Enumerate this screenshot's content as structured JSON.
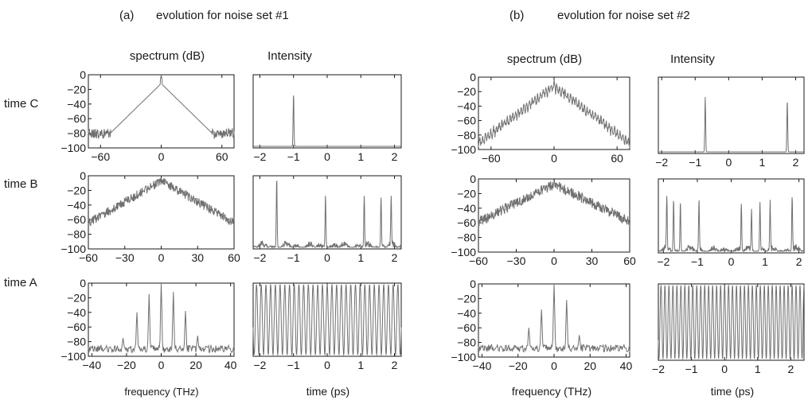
{
  "panels": [
    {
      "label": "(a)",
      "title": "evolution for noise set #1"
    },
    {
      "label": "(b)",
      "title": "evolution for noise set #2"
    }
  ],
  "column_headers": {
    "spectrum": "spectrum (dB)",
    "intensity": "Intensity"
  },
  "row_labels": {
    "C": "time C",
    "B": "time B",
    "A": "time A"
  },
  "x_labels": {
    "spectrum": "frequency (THz)",
    "intensity": "time (ps)"
  },
  "colors": {
    "trace": "#707070",
    "axis": "#1a1a1a"
  },
  "chart_data": [
    {
      "id": "a-C-spectrum",
      "panel": "(a)",
      "row": "time C",
      "type": "line",
      "ylabel": "spectrum (dB)",
      "xlim": [
        -72,
        72
      ],
      "ylim": [
        -100,
        0
      ],
      "xticks": [
        -60,
        0,
        60
      ],
      "yticks": [
        0,
        -20,
        -40,
        -60,
        -80,
        -100
      ],
      "shape": "triangular spectrum, peak ~-12 dB at 0 THz with spike to 0 dB, noise floor ~-80 dB beyond ±50 THz"
    },
    {
      "id": "a-C-intensity",
      "panel": "(a)",
      "row": "time C",
      "type": "line",
      "ylabel": "Intensity",
      "xlim": [
        -2.2,
        2.2
      ],
      "xticks": [
        -2,
        -1,
        0,
        1,
        2
      ],
      "peaks_t": [
        -1.0
      ]
    },
    {
      "id": "a-B-spectrum",
      "panel": "(a)",
      "row": "time B",
      "type": "line",
      "ylabel": "spectrum (dB)",
      "xlim": [
        -60,
        60
      ],
      "ylim": [
        -100,
        0
      ],
      "xticks": [
        -60,
        -30,
        0,
        30,
        60
      ],
      "yticks": [
        0,
        -20,
        -40,
        -60,
        -80,
        -100
      ],
      "shape": "noisy triangular spectrum, peak ~-5 dB at 0 THz, ~-62 dB at ±60 THz"
    },
    {
      "id": "a-B-intensity",
      "panel": "(a)",
      "row": "time B",
      "type": "line",
      "ylabel": "Intensity",
      "xlim": [
        -2.2,
        2.2
      ],
      "xticks": [
        -2,
        -1,
        0,
        1,
        2
      ],
      "peaks_t": [
        -1.5,
        -0.05,
        1.1,
        1.6,
        1.9
      ]
    },
    {
      "id": "a-A-spectrum",
      "panel": "(a)",
      "row": "time A",
      "type": "line",
      "ylabel": "spectrum (dB)",
      "xlim": [
        -42,
        42
      ],
      "ylim": [
        -100,
        0
      ],
      "xticks": [
        -40,
        -20,
        0,
        20,
        40
      ],
      "yticks": [
        0,
        -20,
        -40,
        -60,
        -80,
        -100
      ],
      "lines_thz": [
        -22,
        -14,
        -7,
        0,
        7,
        14,
        21
      ],
      "lines_db": [
        -75,
        -40,
        -15,
        0,
        -12,
        -38,
        -72
      ],
      "floor_db": -90
    },
    {
      "id": "a-A-intensity",
      "panel": "(a)",
      "row": "time A",
      "type": "line",
      "ylabel": "Intensity",
      "xlim": [
        -2.2,
        2.2
      ],
      "xticks": [
        -2,
        -1,
        0,
        1,
        2
      ],
      "shape": "uniform periodic oscillation, period ~0.14 ps"
    },
    {
      "id": "b-C-spectrum",
      "panel": "(b)",
      "row": "time C",
      "type": "line",
      "ylabel": "spectrum (dB)",
      "xlim": [
        -72,
        72
      ],
      "ylim": [
        -100,
        0
      ],
      "xticks": [
        -60,
        0,
        60
      ],
      "yticks": [
        0,
        -20,
        -40,
        -60,
        -80,
        -100
      ],
      "shape": "modulated triangular spectrum, peak ~-5 dB at 0 THz, ~-85 dB at ±70 THz"
    },
    {
      "id": "b-C-intensity",
      "panel": "(b)",
      "row": "time C",
      "type": "line",
      "ylabel": "Intensity",
      "xlim": [
        -2.1,
        2.25
      ],
      "xticks": [
        -2,
        -1,
        0,
        1,
        2
      ],
      "peaks_t": [
        -0.7,
        1.75
      ]
    },
    {
      "id": "b-B-spectrum",
      "panel": "(b)",
      "row": "time B",
      "type": "line",
      "ylabel": "spectrum (dB)",
      "xlim": [
        -60,
        60
      ],
      "ylim": [
        -100,
        0
      ],
      "xticks": [
        -60,
        -30,
        0,
        30,
        60
      ],
      "yticks": [
        0,
        -20,
        -40,
        -60,
        -80,
        -100
      ],
      "shape": "noisy triangular spectrum, peak ~-5 dB at 0 THz, ~-55 dB at ±60 THz"
    },
    {
      "id": "b-B-intensity",
      "panel": "(b)",
      "row": "time B",
      "type": "line",
      "ylabel": "Intensity",
      "xlim": [
        -2.15,
        2.15
      ],
      "xticks": [
        -2,
        -1,
        0,
        1,
        2
      ],
      "peaks_t": [
        -1.9,
        -1.7,
        -1.5,
        -0.95,
        0.3,
        0.6,
        0.85,
        1.15,
        1.8
      ]
    },
    {
      "id": "b-A-spectrum",
      "panel": "(b)",
      "row": "time A",
      "type": "line",
      "ylabel": "spectrum (dB)",
      "xlim": [
        -42,
        42
      ],
      "ylim": [
        -100,
        0
      ],
      "xticks": [
        -40,
        -20,
        0,
        20,
        40
      ],
      "yticks": [
        0,
        -20,
        -40,
        -60,
        -80,
        -100
      ],
      "lines_thz": [
        -14,
        -7,
        0,
        7,
        14
      ],
      "lines_db": [
        -60,
        -35,
        0,
        -22,
        -70
      ],
      "floor_db": -88
    },
    {
      "id": "b-A-intensity",
      "panel": "(b)",
      "row": "time A",
      "type": "line",
      "ylabel": "Intensity",
      "xlim": [
        -2.0,
        2.4
      ],
      "xticks": [
        -2,
        -1,
        0,
        1,
        2
      ],
      "shape": "uniform periodic oscillation, period ~0.12 ps"
    }
  ]
}
